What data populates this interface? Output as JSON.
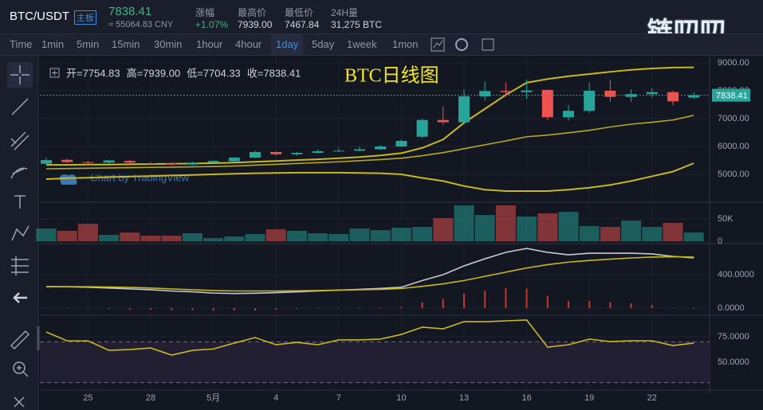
{
  "header": {
    "pair": "BTC/USDT",
    "board": "主板",
    "price": "7838.41",
    "cny": "≈ 55064.83 CNY",
    "stats": [
      {
        "label": "涨幅",
        "value": "+1.07%"
      },
      {
        "label": "最高价",
        "value": "7939.00"
      },
      {
        "label": "最低价",
        "value": "7467.84"
      },
      {
        "label": "24H量",
        "value": "31,275 BTC"
      }
    ],
    "logo": "链叨叨"
  },
  "toolbar": {
    "intervals": [
      "Time",
      "1min",
      "5min",
      "15min",
      "30min",
      "1hour",
      "4hour",
      "1day",
      "5day",
      "1week",
      "1mon"
    ],
    "active_index": 7
  },
  "chart": {
    "title": "BTC日线图",
    "watermark": "Chart by TradingView",
    "legend": [
      {
        "label": "开=",
        "value": "7754.83"
      },
      {
        "label": "高=",
        "value": "7939.00"
      },
      {
        "label": "低=",
        "value": "7704.33"
      },
      {
        "label": "收=",
        "value": "7838.41"
      }
    ],
    "categories": [
      null,
      null,
      "25",
      null,
      null,
      "28",
      null,
      null,
      "5月",
      null,
      null,
      "4",
      null,
      null,
      "7",
      null,
      null,
      "10",
      null,
      null,
      "13",
      null,
      null,
      "16",
      null,
      null,
      "19",
      null,
      null,
      "22",
      null,
      null
    ],
    "up_color": "#26a69a",
    "down_color": "#ef5350",
    "price": {
      "ylim": [
        4000,
        9371
      ],
      "yticks": [
        {
          "value": 9000,
          "label": "9000.00"
        },
        {
          "value": 8000,
          "label": "8000.00"
        },
        {
          "value": 7000,
          "label": "7000.00"
        },
        {
          "value": 6000,
          "label": "6000.00"
        },
        {
          "value": 5000,
          "label": "5000.00"
        }
      ],
      "open": [
        5380,
        5520,
        5440,
        5420,
        5480,
        5400,
        5400,
        5350,
        5420,
        5470,
        5600,
        5800,
        5720,
        5770,
        5830,
        5850,
        5900,
        6000,
        6350,
        6950,
        6870,
        7800,
        7990,
        7950,
        8030,
        7050,
        7280,
        8000,
        7780,
        7880,
        7950,
        7754.83
      ],
      "high": [
        5600,
        5560,
        5480,
        5530,
        5520,
        5440,
        5430,
        5450,
        5500,
        5620,
        5850,
        5830,
        5800,
        5900,
        5950,
        6000,
        6050,
        6250,
        7000,
        7450,
        8050,
        8330,
        8300,
        8400,
        8050,
        7500,
        8300,
        8380,
        8050,
        8100,
        8000,
        7939
      ],
      "low": [
        5350,
        5400,
        5360,
        5380,
        5390,
        5350,
        5310,
        5330,
        5400,
        5450,
        5580,
        5680,
        5680,
        5750,
        5800,
        5820,
        5880,
        5980,
        6300,
        6780,
        6800,
        7650,
        7800,
        7700,
        6950,
        6930,
        7200,
        7600,
        7600,
        7750,
        7480,
        7704.33
      ],
      "close": [
        5510,
        5440,
        5420,
        5500,
        5420,
        5380,
        5350,
        5420,
        5480,
        5600,
        5800,
        5720,
        5770,
        5830,
        5850,
        5900,
        6000,
        6200,
        6950,
        6870,
        7800,
        7990,
        7950,
        8010,
        7050,
        7280,
        8000,
        7780,
        7880,
        7950,
        7620,
        7838.41
      ],
      "lines": [
        {
          "color": "#c9b81e",
          "values": [
            5340,
            5340,
            5350,
            5350,
            5360,
            5370,
            5380,
            5390,
            5400,
            5420,
            5450,
            5480,
            5510,
            5540,
            5580,
            5620,
            5680,
            5760,
            5950,
            6250,
            6850,
            7350,
            7850,
            8290,
            8420,
            8520,
            8600,
            8680,
            8750,
            8800,
            8830,
            8840
          ]
        },
        {
          "color": "#c9b81e",
          "values": [
            4830,
            4860,
            4880,
            4900,
            4920,
            4940,
            4960,
            4980,
            5000,
            5020,
            5040,
            5050,
            5060,
            5060,
            5060,
            5050,
            5040,
            5000,
            4870,
            4760,
            4580,
            4450,
            4400,
            4400,
            4400,
            4450,
            4520,
            4620,
            4760,
            4930,
            5100,
            5400
          ]
        },
        {
          "color": "#b5a81c",
          "values": [
            5200,
            5210,
            5220,
            5230,
            5240,
            5250,
            5260,
            5270,
            5280,
            5300,
            5330,
            5360,
            5390,
            5420,
            5450,
            5490,
            5530,
            5580,
            5670,
            5780,
            5920,
            6060,
            6200,
            6350,
            6410,
            6490,
            6580,
            6700,
            6800,
            6870,
            6950,
            7120
          ]
        }
      ]
    },
    "volume": {
      "ylim": [
        -3500,
        84000
      ],
      "yticks": [
        {
          "value": 50000,
          "label": "50K"
        },
        0
      ],
      "values": [
        28600,
        23200,
        39300,
        14300,
        19600,
        12500,
        12500,
        17900,
        7100,
        10700,
        16100,
        26800,
        23200,
        17900,
        16100,
        28600,
        25000,
        30400,
        32100,
        51800,
        80400,
        58900,
        80400,
        55400,
        62500,
        66100,
        33900,
        32100,
        46400,
        32100,
        41100,
        19600
      ]
    },
    "macd": {
      "ylim": [
        -76,
        762
      ],
      "yticks": [
        {
          "value": 400,
          "label": "400.0000"
        },
        {
          "value": 0,
          "label": "0.0000"
        }
      ],
      "hist_color": "#c0392b",
      "histogram": [
        0,
        -2,
        -6,
        -12,
        -18,
        -20,
        -25,
        -25,
        -30,
        -30,
        -27,
        -20,
        -12,
        -5,
        0,
        5,
        10,
        15,
        70,
        110,
        175,
        210,
        237,
        234,
        147,
        88,
        87,
        72,
        57,
        38,
        4,
        -10
      ],
      "lines": [
        {
          "color": "#c8c8d0",
          "values": [
            257,
            255,
            250,
            240,
            230,
            220,
            205,
            195,
            180,
            175,
            178,
            185,
            195,
            205,
            215,
            225,
            235,
            250,
            330,
            400,
            505,
            590,
            667,
            714,
            667,
            638,
            657,
            657,
            657,
            648,
            619,
            600
          ]
        },
        {
          "color": "#c9b81e",
          "values": [
            257,
            257,
            256,
            252,
            248,
            240,
            230,
            220,
            210,
            205,
            205,
            205,
            207,
            210,
            215,
            220,
            225,
            235,
            260,
            290,
            330,
            380,
            430,
            480,
            520,
            550,
            570,
            585,
            600,
            610,
            615,
            610
          ]
        }
      ]
    },
    "rsi": {
      "ylim": [
        22.7,
        95.3
      ],
      "yticks": [
        {
          "value": 75,
          "label": "75.0000"
        },
        {
          "value": 50,
          "label": "50.0000"
        }
      ],
      "bands": [
        70,
        30
      ],
      "lines": [
        {
          "color": "#c9b81e",
          "values": [
            79.7,
            71,
            71,
            61.7,
            62.5,
            64,
            57,
            61.7,
            63,
            68.8,
            74.2,
            67.2,
            69.5,
            67.2,
            71.9,
            71.9,
            72.7,
            77.3,
            84.4,
            82.8,
            89.8,
            89.8,
            90.6,
            91.4,
            64.8,
            67.2,
            72.7,
            70.3,
            71.1,
            71.1,
            66.4,
            68.8
          ]
        }
      ]
    }
  }
}
